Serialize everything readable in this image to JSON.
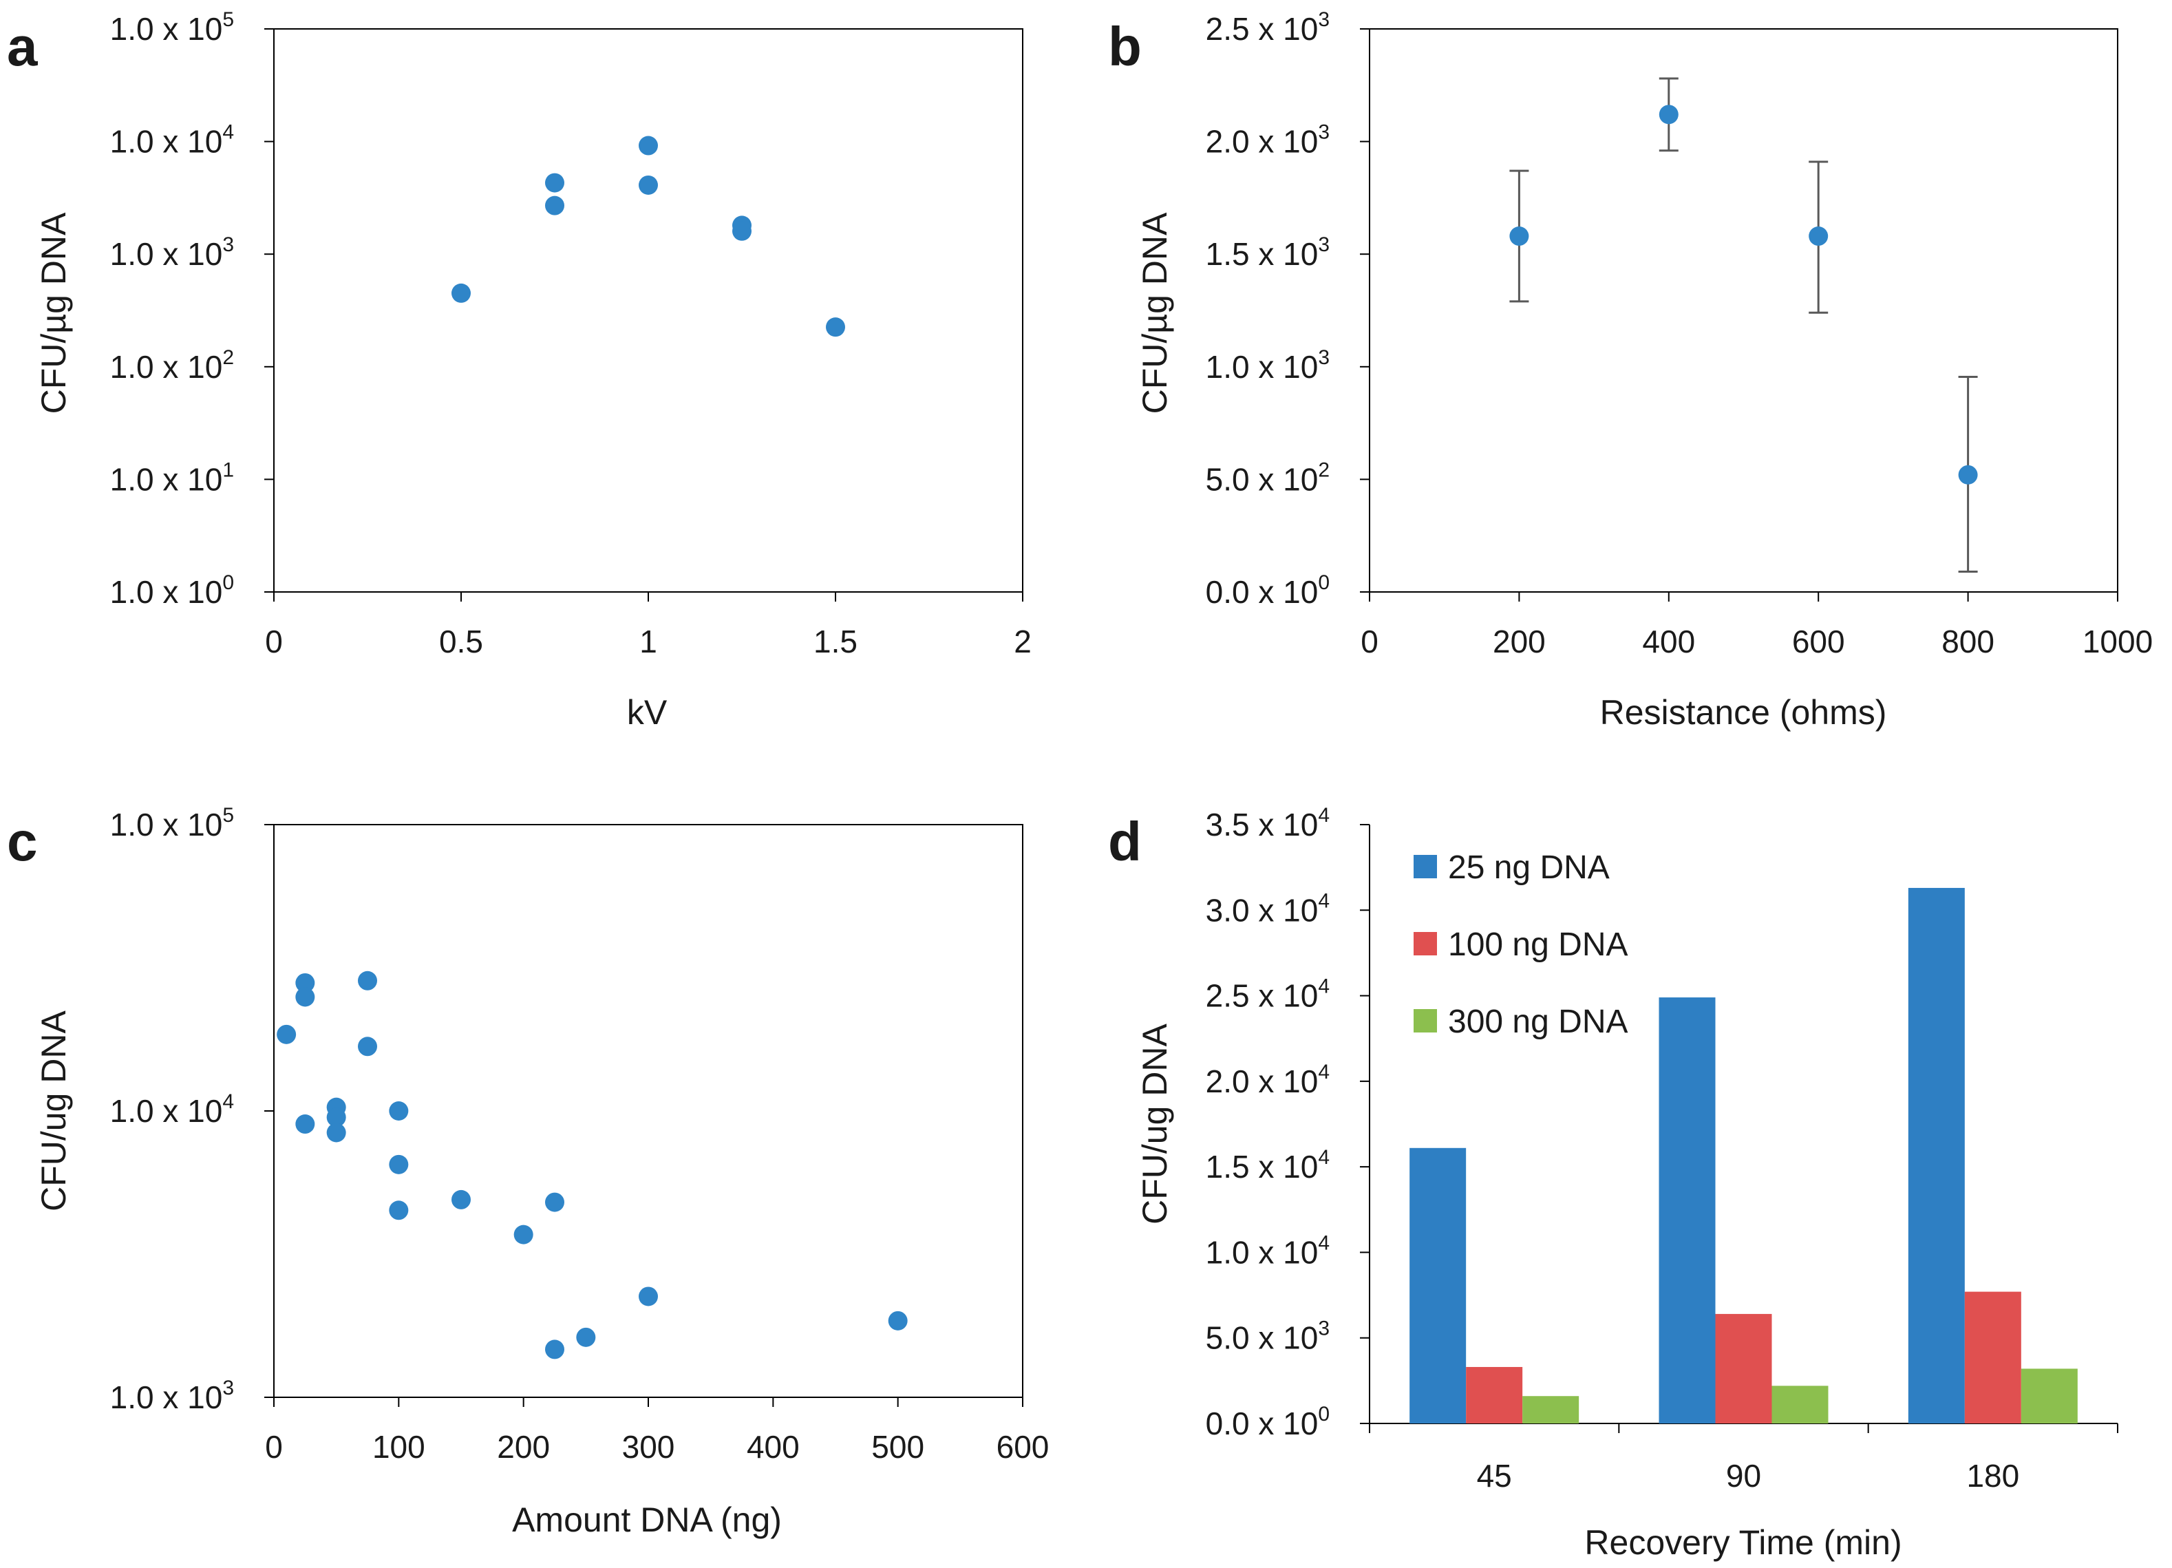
{
  "chart_data": [
    {
      "panel": "a",
      "type": "scatter",
      "xlabel": "kV",
      "ylabel": "CFU/µg DNA",
      "xlim": [
        0,
        2
      ],
      "xticks": [
        0,
        0.5,
        1,
        1.5,
        2
      ],
      "xtick_labels": [
        "0",
        "0.5",
        "1",
        "1.5",
        "2"
      ],
      "yscale": "log",
      "ylim": [
        1,
        100000
      ],
      "yticks": [
        1,
        10,
        100,
        1000,
        10000,
        100000
      ],
      "ytick_labels": [
        {
          "mantissa": "1.0 x 10",
          "exp": "0"
        },
        {
          "mantissa": "1.0 x 10",
          "exp": "1"
        },
        {
          "mantissa": "1.0 x 10",
          "exp": "2"
        },
        {
          "mantissa": "1.0 x 10",
          "exp": "3"
        },
        {
          "mantissa": "1.0 x 10",
          "exp": "4"
        },
        {
          "mantissa": "1.0 x 10",
          "exp": "5"
        }
      ],
      "points": [
        {
          "x": 0.5,
          "y": 450
        },
        {
          "x": 0.75,
          "y": 4300
        },
        {
          "x": 0.75,
          "y": 2700
        },
        {
          "x": 1.0,
          "y": 9200
        },
        {
          "x": 1.0,
          "y": 4100
        },
        {
          "x": 1.25,
          "y": 1800
        },
        {
          "x": 1.25,
          "y": 1600
        },
        {
          "x": 1.5,
          "y": 225
        }
      ],
      "color": "#2f85c8"
    },
    {
      "panel": "b",
      "type": "scatter",
      "xlabel": "Resistance (ohms)",
      "ylabel": "CFU/µg DNA",
      "xlim": [
        0,
        1000
      ],
      "xticks": [
        0,
        200,
        400,
        600,
        800,
        1000
      ],
      "xtick_labels": [
        "0",
        "200",
        "400",
        "600",
        "800",
        "1000"
      ],
      "yscale": "linear",
      "ylim": [
        0,
        2500
      ],
      "yticks": [
        0,
        500,
        1000,
        1500,
        2000,
        2500
      ],
      "ytick_labels": [
        {
          "mantissa": "0.0 x 10",
          "exp": "0"
        },
        {
          "mantissa": "5.0 x 10",
          "exp": "2"
        },
        {
          "mantissa": "1.0 x 10",
          "exp": "3"
        },
        {
          "mantissa": "1.5 x 10",
          "exp": "3"
        },
        {
          "mantissa": "2.0 x 10",
          "exp": "3"
        },
        {
          "mantissa": "2.5 x 10",
          "exp": "3"
        }
      ],
      "points": [
        {
          "x": 200,
          "y": 1580,
          "err_low": 1290,
          "err_high": 1870
        },
        {
          "x": 400,
          "y": 2120,
          "err_low": 1960,
          "err_high": 2280
        },
        {
          "x": 600,
          "y": 1580,
          "err_low": 1240,
          "err_high": 1910
        },
        {
          "x": 800,
          "y": 520,
          "err_low": 90,
          "err_high": 955
        }
      ],
      "color": "#2f85c8",
      "error_color": "#595959"
    },
    {
      "panel": "c",
      "type": "scatter",
      "xlabel": "Amount DNA (ng)",
      "ylabel": "CFU/ug DNA",
      "xlim": [
        0,
        600
      ],
      "xticks": [
        0,
        100,
        200,
        300,
        400,
        500,
        600
      ],
      "xtick_labels": [
        "0",
        "100",
        "200",
        "300",
        "400",
        "500",
        "600"
      ],
      "yscale": "log",
      "ylim": [
        1000,
        100000
      ],
      "yticks": [
        1000,
        10000,
        100000
      ],
      "ytick_labels": [
        {
          "mantissa": "1.0 x 10",
          "exp": "3"
        },
        {
          "mantissa": "1.0 x 10",
          "exp": "4"
        },
        {
          "mantissa": "1.0 x 10",
          "exp": "5"
        }
      ],
      "points": [
        {
          "x": 10,
          "y": 18500
        },
        {
          "x": 25,
          "y": 28000
        },
        {
          "x": 25,
          "y": 25000
        },
        {
          "x": 25,
          "y": 9000
        },
        {
          "x": 50,
          "y": 10300
        },
        {
          "x": 50,
          "y": 9500
        },
        {
          "x": 50,
          "y": 8400
        },
        {
          "x": 75,
          "y": 28500
        },
        {
          "x": 75,
          "y": 16800
        },
        {
          "x": 100,
          "y": 10000
        },
        {
          "x": 100,
          "y": 6500
        },
        {
          "x": 100,
          "y": 4500
        },
        {
          "x": 150,
          "y": 4900
        },
        {
          "x": 200,
          "y": 3700
        },
        {
          "x": 225,
          "y": 4800
        },
        {
          "x": 225,
          "y": 1470
        },
        {
          "x": 250,
          "y": 1620
        },
        {
          "x": 300,
          "y": 2250
        },
        {
          "x": 500,
          "y": 1850
        }
      ],
      "color": "#2f85c8"
    },
    {
      "panel": "d",
      "type": "bar",
      "xlabel": "Recovery Time (min)",
      "ylabel": "CFU/ug DNA",
      "categories": [
        "45",
        "90",
        "180"
      ],
      "ylim": [
        0,
        35000
      ],
      "yticks": [
        0,
        5000,
        10000,
        15000,
        20000,
        25000,
        30000,
        35000
      ],
      "ytick_labels": [
        {
          "mantissa": "0.0 x 10",
          "exp": "0"
        },
        {
          "mantissa": "5.0 x 10",
          "exp": "3"
        },
        {
          "mantissa": "1.0 x 10",
          "exp": "4"
        },
        {
          "mantissa": "1.5 x 10",
          "exp": "4"
        },
        {
          "mantissa": "2.0 x 10",
          "exp": "4"
        },
        {
          "mantissa": "2.5 x 10",
          "exp": "4"
        },
        {
          "mantissa": "3.0 x 10",
          "exp": "4"
        },
        {
          "mantissa": "3.5 x 10",
          "exp": "4"
        }
      ],
      "series": [
        {
          "name": "25 ng DNA",
          "color": "#2e7fc3",
          "values": [
            16100,
            24900,
            31300
          ]
        },
        {
          "name": "100 ng DNA",
          "color": "#e05050",
          "values": [
            3300,
            6400,
            7700
          ]
        },
        {
          "name": "300 ng DNA",
          "color": "#8cbf4e",
          "values": [
            1600,
            2200,
            3200
          ]
        }
      ],
      "legend": "top-left"
    }
  ]
}
